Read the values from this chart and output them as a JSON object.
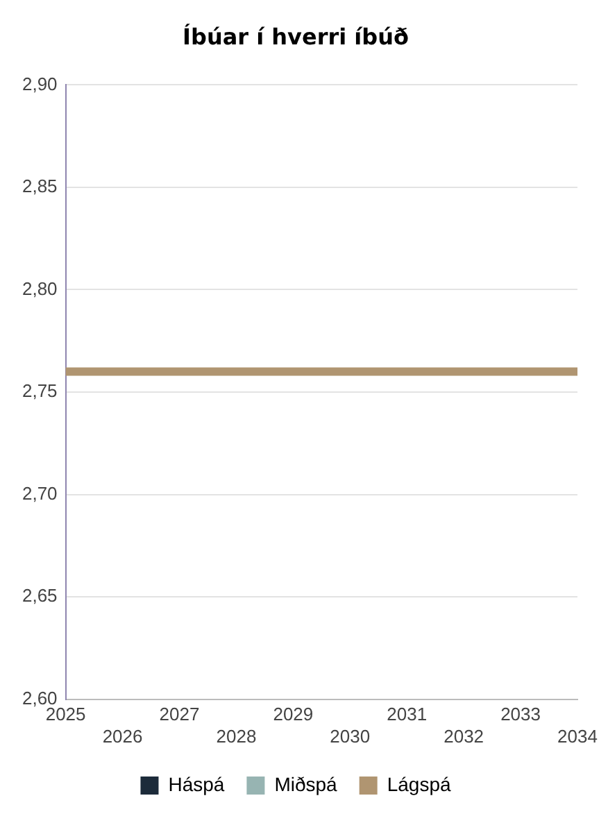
{
  "chart_data": {
    "type": "line",
    "title": "Íbúar í hverri íbúð",
    "categories": [
      "2025",
      "2026",
      "2027",
      "2028",
      "2029",
      "2030",
      "2031",
      "2032",
      "2033",
      "2034"
    ],
    "series": [
      {
        "name": "Háspá",
        "color": "#1c2b3a",
        "values": [
          null,
          null,
          null,
          null,
          null,
          null,
          null,
          null,
          null,
          null
        ]
      },
      {
        "name": "Miðspá",
        "color": "#97b4b2",
        "values": [
          null,
          null,
          null,
          null,
          null,
          null,
          null,
          null,
          null,
          null
        ]
      },
      {
        "name": "Lágspá",
        "color": "#b09571",
        "values": [
          2.76,
          2.76,
          2.76,
          2.76,
          2.76,
          2.76,
          2.76,
          2.76,
          2.76,
          2.76
        ]
      }
    ],
    "ylim": [
      2.6,
      2.9
    ],
    "yticks": [
      {
        "value": 2.6,
        "label": "2,60"
      },
      {
        "value": 2.65,
        "label": "2,65"
      },
      {
        "value": 2.7,
        "label": "2,70"
      },
      {
        "value": 2.75,
        "label": "2,75"
      },
      {
        "value": 2.8,
        "label": "2,80"
      },
      {
        "value": 2.85,
        "label": "2,85"
      },
      {
        "value": 2.9,
        "label": "2,90"
      }
    ],
    "grid": "y",
    "legend": "bottom",
    "marker": "none",
    "line_style": "solid"
  }
}
